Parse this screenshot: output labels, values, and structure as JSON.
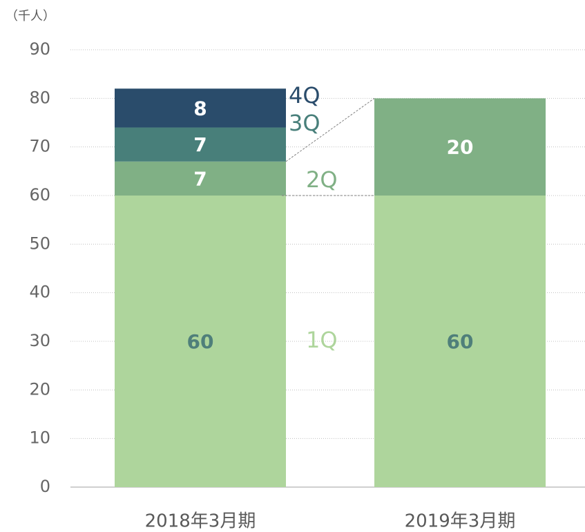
{
  "chart_data": {
    "type": "stacked_bar",
    "unit_label": "（千人）",
    "categories": [
      "2018年3月期",
      "2019年3月期"
    ],
    "series": [
      {
        "name": "1Q",
        "color": "#aed59c",
        "label_color": "#4f7f7a",
        "values": [
          60,
          60
        ]
      },
      {
        "name": "2Q",
        "color": "#80b085",
        "label_color": "#ffffff",
        "values": [
          7,
          20
        ]
      },
      {
        "name": "3Q",
        "color": "#487f7a",
        "label_color": "#ffffff",
        "values": [
          7,
          null
        ]
      },
      {
        "name": "4Q",
        "color": "#2a4c6b",
        "label_color": "#ffffff",
        "values": [
          8,
          null
        ]
      }
    ],
    "ylim": [
      0,
      90
    ],
    "yticks": [
      0,
      10,
      20,
      30,
      40,
      50,
      60,
      70,
      80,
      90
    ],
    "grid": true
  }
}
